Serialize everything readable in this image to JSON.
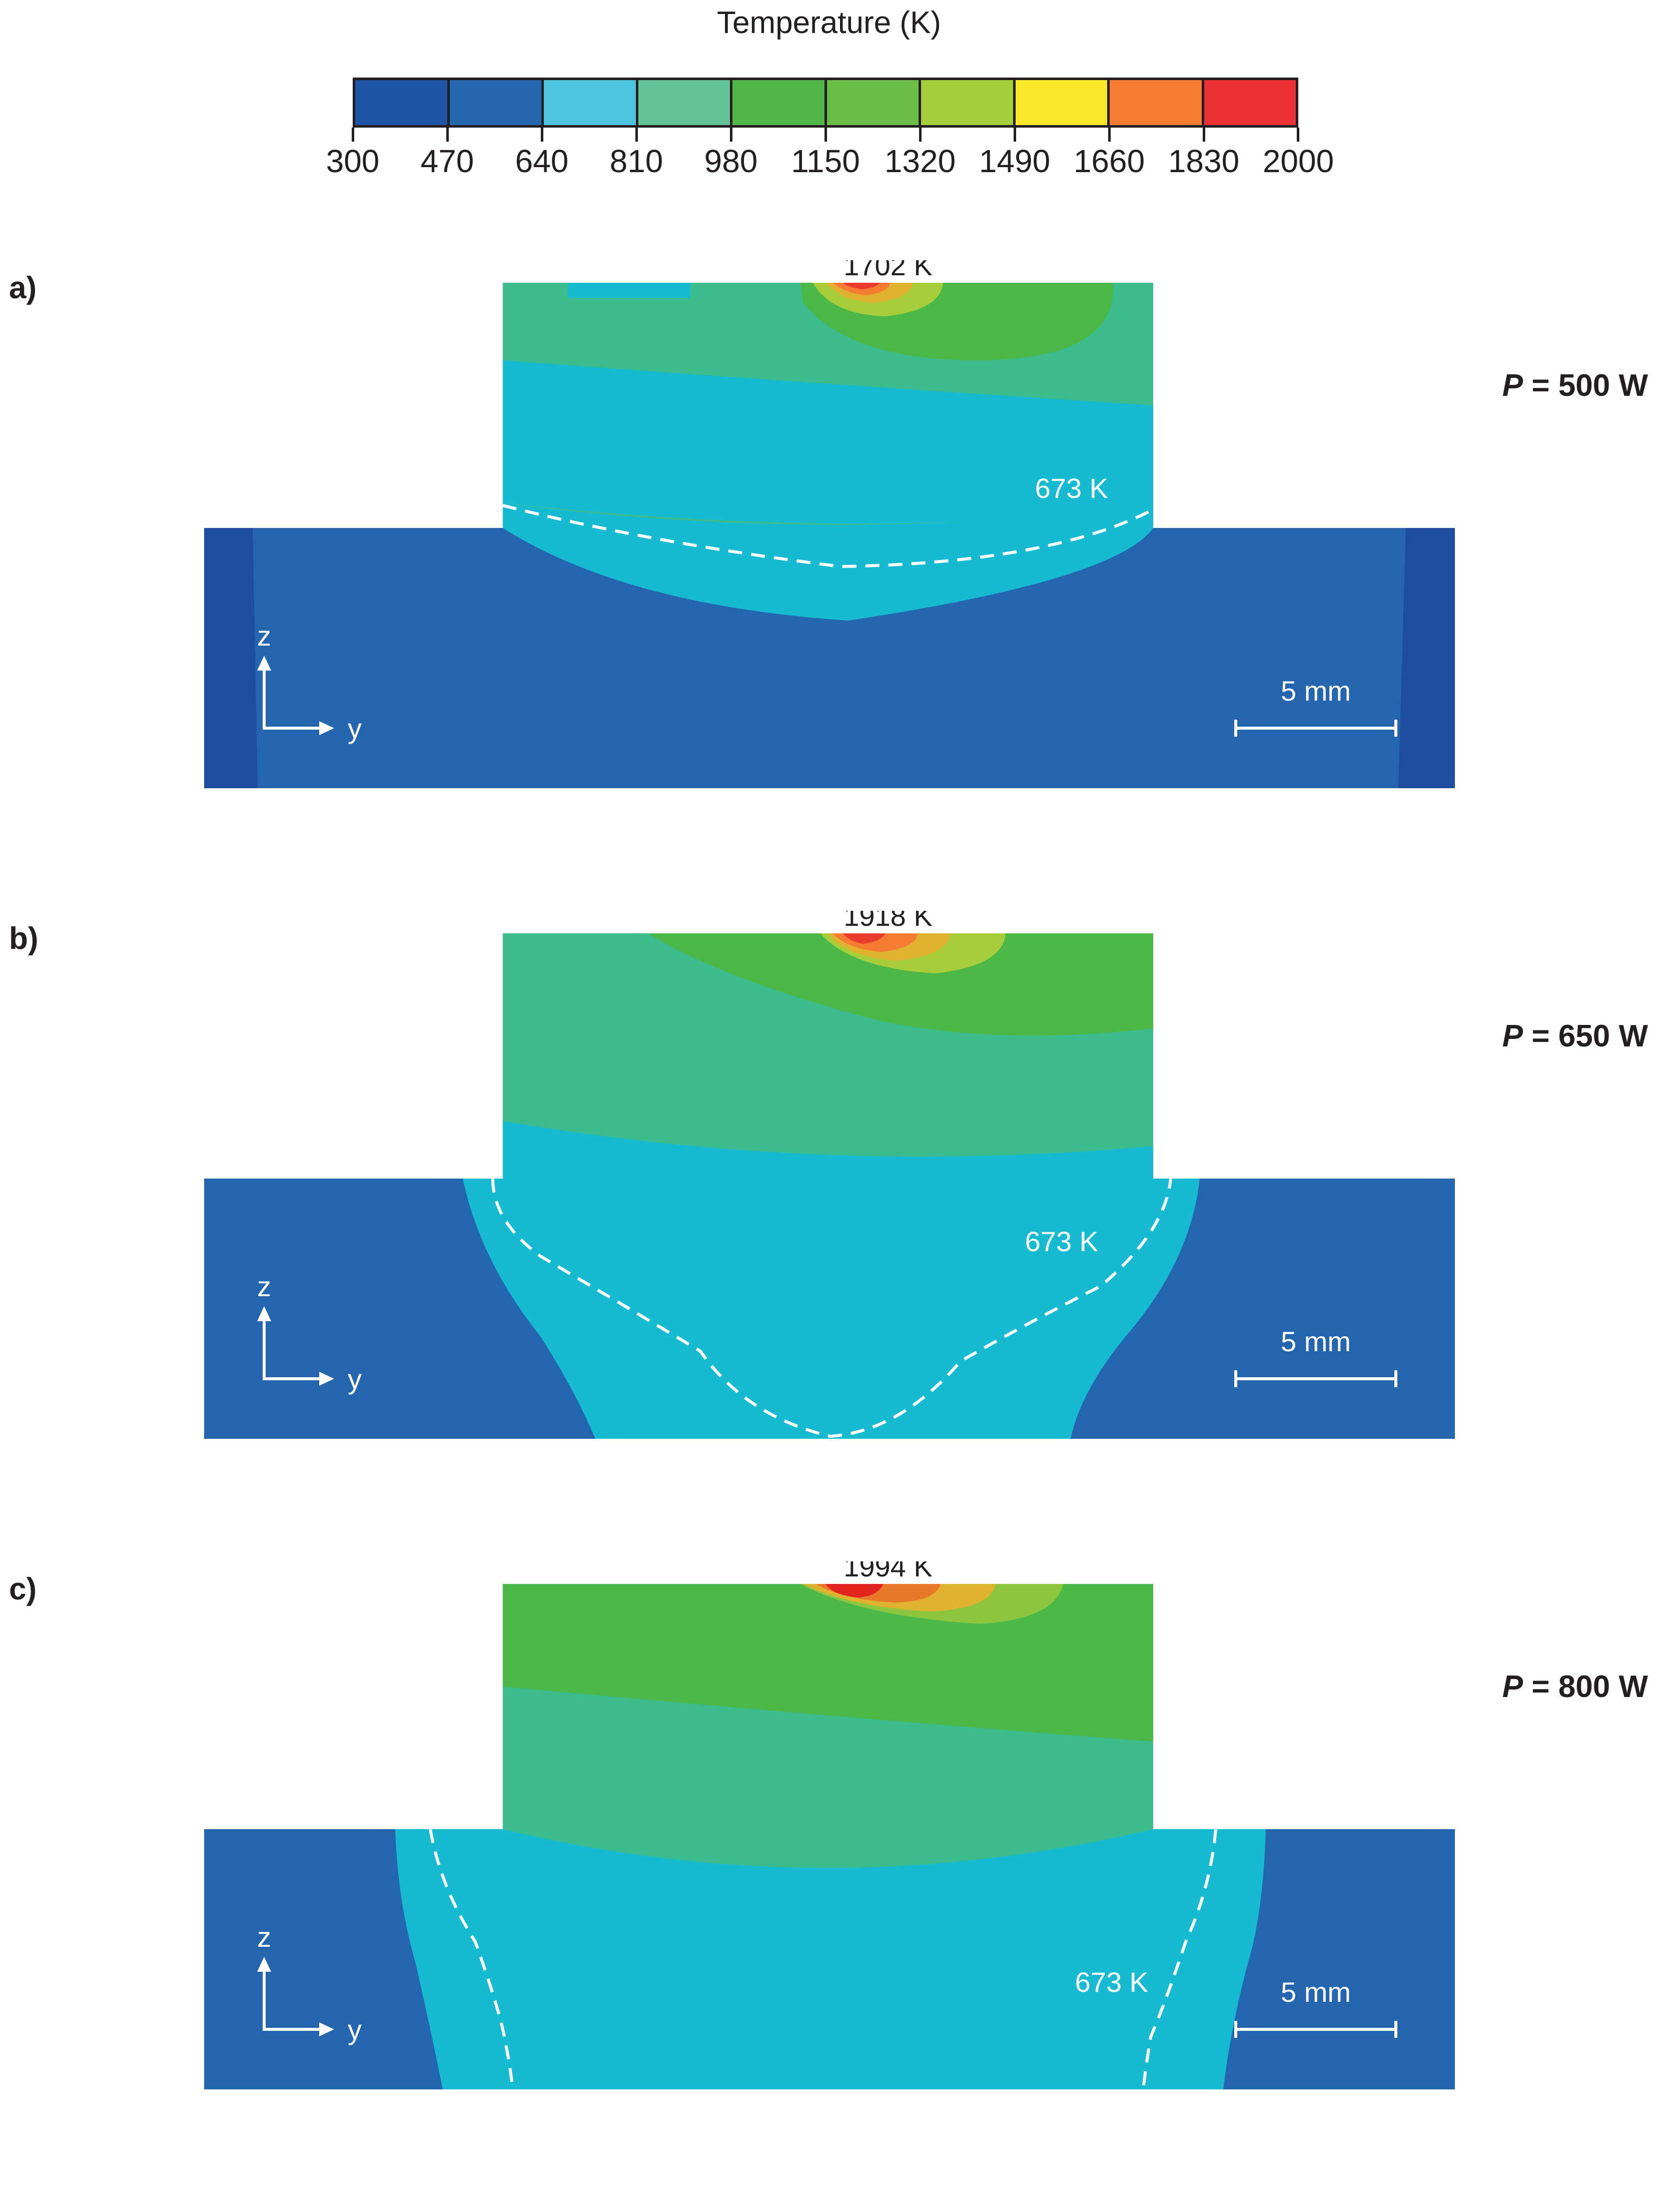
{
  "legend": {
    "title": "Temperature (K)",
    "ticks": [
      "300",
      "470",
      "640",
      "810",
      "980",
      "1150",
      "1320",
      "1490",
      "1660",
      "1830",
      "2000"
    ],
    "colors": [
      "#1e55a5",
      "#2465b0",
      "#4cc4e0",
      "#63c397",
      "#51b848",
      "#6bbd45",
      "#a4cd3a",
      "#f9e729",
      "#f47d33",
      "#ec3136"
    ]
  },
  "panels": [
    {
      "letter": "a)",
      "power_var": "P",
      "power_rest": " = 500 W",
      "peak_label": "1702 K",
      "iso_label": "673 K",
      "axis_z": "z",
      "axis_y": "y",
      "scale_label": "5 mm"
    },
    {
      "letter": "b)",
      "power_var": "P",
      "power_rest": " = 650 W",
      "peak_label": "1918 K",
      "iso_label": "673 K",
      "axis_z": "z",
      "axis_y": "y",
      "scale_label": "5 mm"
    },
    {
      "letter": "c)",
      "power_var": "P",
      "power_rest": " = 800 W",
      "peak_label": "1994 K",
      "iso_label": "673 K",
      "axis_z": "z",
      "axis_y": "y",
      "scale_label": "5 mm"
    }
  ]
}
